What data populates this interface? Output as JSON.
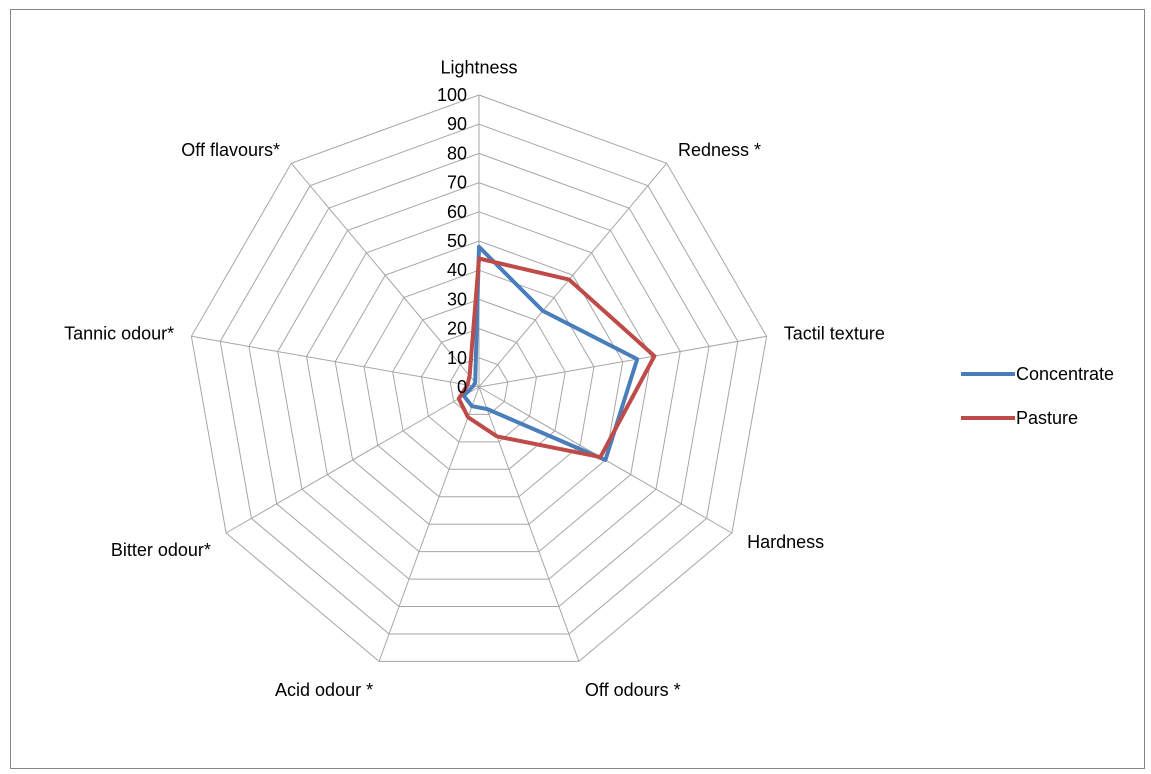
{
  "chart_data": {
    "type": "radar",
    "title": "",
    "axes": [
      "Lightness",
      "Redness *",
      "Tactil texture",
      "Hardness",
      "Off odours *",
      "Acid odour *",
      "Bitter odour*",
      "Tannic odour*",
      "Off flavours*"
    ],
    "r_range": [
      0,
      100
    ],
    "r_ticks": [
      "0",
      "10",
      "20",
      "30",
      "40",
      "50",
      "60",
      "70",
      "80",
      "90",
      "100"
    ],
    "grid": true,
    "legend_position": "right",
    "series": [
      {
        "name": "Concentrate",
        "color": "#4a7ebb",
        "values": [
          48,
          34,
          55,
          50,
          8,
          7,
          6,
          2,
          2
        ]
      },
      {
        "name": "Pasture",
        "color": "#be4b48",
        "values": [
          44,
          48,
          61,
          48,
          18,
          11,
          8,
          4,
          5
        ]
      }
    ]
  }
}
